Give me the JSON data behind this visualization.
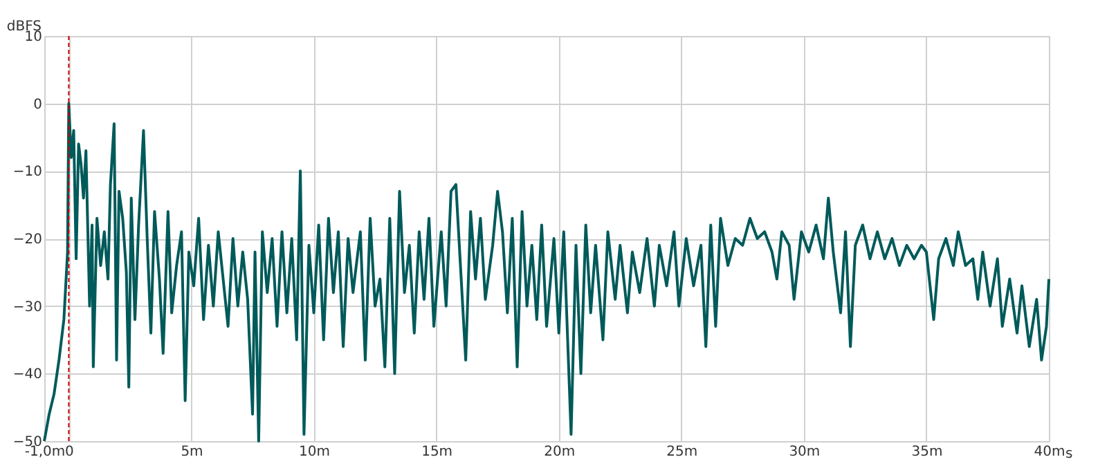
{
  "chart_data": {
    "type": "line",
    "xlabel": "s",
    "ylabel": "dBFS",
    "x": [
      -1.0,
      -0.8,
      -0.6,
      -0.4,
      -0.2,
      -0.05,
      0,
      0.1,
      0.2,
      0.3,
      0.4,
      0.5,
      0.6,
      0.7,
      0.85,
      0.95,
      1.0,
      1.15,
      1.3,
      1.45,
      1.6,
      1.7,
      1.85,
      1.95,
      2.05,
      2.2,
      2.35,
      2.45,
      2.55,
      2.7,
      2.85,
      3.05,
      3.2,
      3.35,
      3.5,
      3.7,
      3.85,
      4.05,
      4.2,
      4.4,
      4.6,
      4.75,
      4.9,
      5.1,
      5.3,
      5.5,
      5.7,
      5.9,
      6.1,
      6.3,
      6.5,
      6.7,
      6.9,
      7.1,
      7.3,
      7.5,
      7.6,
      7.75,
      7.9,
      8.1,
      8.3,
      8.5,
      8.7,
      8.9,
      9.1,
      9.3,
      9.45,
      9.6,
      9.8,
      10.0,
      10.2,
      10.4,
      10.6,
      10.8,
      11.0,
      11.2,
      11.4,
      11.6,
      11.9,
      12.1,
      12.3,
      12.5,
      12.7,
      12.9,
      13.1,
      13.3,
      13.5,
      13.7,
      13.9,
      14.1,
      14.3,
      14.5,
      14.7,
      14.9,
      15.2,
      15.4,
      15.6,
      15.8,
      16.0,
      16.2,
      16.4,
      16.6,
      16.8,
      17.0,
      17.3,
      17.5,
      17.7,
      17.9,
      18.1,
      18.3,
      18.5,
      18.7,
      18.9,
      19.1,
      19.3,
      19.5,
      19.8,
      20.0,
      20.2,
      20.5,
      20.7,
      20.9,
      21.1,
      21.3,
      21.5,
      21.8,
      22.0,
      22.3,
      22.5,
      22.8,
      23.0,
      23.3,
      23.6,
      23.9,
      24.1,
      24.4,
      24.7,
      24.9,
      25.2,
      25.5,
      25.8,
      26.0,
      26.2,
      26.4,
      26.6,
      26.9,
      27.2,
      27.5,
      27.8,
      28.1,
      28.4,
      28.7,
      28.9,
      29.1,
      29.4,
      29.6,
      29.9,
      30.2,
      30.5,
      30.8,
      31.0,
      31.2,
      31.5,
      31.7,
      31.9,
      32.1,
      32.4,
      32.7,
      33.0,
      33.3,
      33.6,
      33.9,
      34.2,
      34.5,
      34.8,
      35.0,
      35.3,
      35.5,
      35.8,
      36.1,
      36.3,
      36.6,
      36.9,
      37.1,
      37.3,
      37.6,
      37.9,
      38.1,
      38.4,
      38.7,
      38.9,
      39.2,
      39.5,
      39.7,
      39.9,
      40.0
    ],
    "series": [
      {
        "color": "#005a5a",
        "values": [
          -50,
          -46,
          -43,
          -38,
          -32,
          -22,
          0,
          -8,
          -4,
          -23,
          -6,
          -9,
          -14,
          -7,
          -30,
          -18,
          -39,
          -17,
          -24,
          -19,
          -26,
          -12,
          -3,
          -38,
          -13,
          -17,
          -25,
          -42,
          -14,
          -32,
          -18,
          -4,
          -20,
          -34,
          -16,
          -26,
          -37,
          -16,
          -31,
          -24,
          -19,
          -44,
          -22,
          -27,
          -17,
          -32,
          -21,
          -30,
          -19,
          -26,
          -33,
          -20,
          -30,
          -22,
          -29,
          -46,
          -22,
          -50,
          -19,
          -28,
          -20,
          -33,
          -19,
          -31,
          -20,
          -35,
          -10,
          -49,
          -21,
          -31,
          -18,
          -35,
          -17,
          -28,
          -19,
          -36,
          -20,
          -28,
          -19,
          -38,
          -17,
          -30,
          -26,
          -39,
          -17,
          -40,
          -13,
          -28,
          -21,
          -34,
          -19,
          -29,
          -17,
          -33,
          -19,
          -30,
          -13,
          -12,
          -25,
          -38,
          -16,
          -26,
          -17,
          -29,
          -21,
          -13,
          -19,
          -31,
          -17,
          -39,
          -16,
          -30,
          -21,
          -32,
          -18,
          -33,
          -20,
          -34,
          -19,
          -49,
          -21,
          -40,
          -18,
          -31,
          -21,
          -35,
          -19,
          -29,
          -21,
          -31,
          -22,
          -28,
          -20,
          -30,
          -21,
          -27,
          -19,
          -30,
          -20,
          -27,
          -21,
          -36,
          -18,
          -33,
          -17,
          -24,
          -20,
          -21,
          -17,
          -20,
          -19,
          -22,
          -26,
          -19,
          -21,
          -29,
          -19,
          -22,
          -18,
          -23,
          -14,
          -22,
          -31,
          -19,
          -36,
          -21,
          -18,
          -23,
          -19,
          -23,
          -20,
          -24,
          -21,
          -23,
          -21,
          -22,
          -32,
          -23,
          -20,
          -24,
          -19,
          -24,
          -23,
          -29,
          -22,
          -30,
          -23,
          -33,
          -26,
          -34,
          -27,
          -36,
          -29,
          -38,
          -33,
          -26
        ]
      }
    ],
    "xlim": [
      -1.0,
      40
    ],
    "xticks": [
      {
        "value": -1.0,
        "label": "-1,0m"
      },
      0,
      {
        "value": 5,
        "label": "5m"
      },
      {
        "value": 10,
        "label": "10m"
      },
      {
        "value": 15,
        "label": "15m"
      },
      {
        "value": 20,
        "label": "20m"
      },
      {
        "value": 25,
        "label": "25m"
      },
      {
        "value": 30,
        "label": "30m"
      },
      {
        "value": 35,
        "label": "35m"
      },
      {
        "value": 40,
        "label": "40m"
      }
    ],
    "ylim": [
      -50,
      10
    ],
    "yticks": [
      -50,
      -40,
      -30,
      -20,
      -10,
      0,
      10
    ],
    "ref_lines": [
      {
        "axis": "x",
        "value": 0,
        "color": "#cc0000",
        "line_style": "dashed"
      }
    ],
    "grid": true,
    "line_style": "solid",
    "marker": "none"
  }
}
